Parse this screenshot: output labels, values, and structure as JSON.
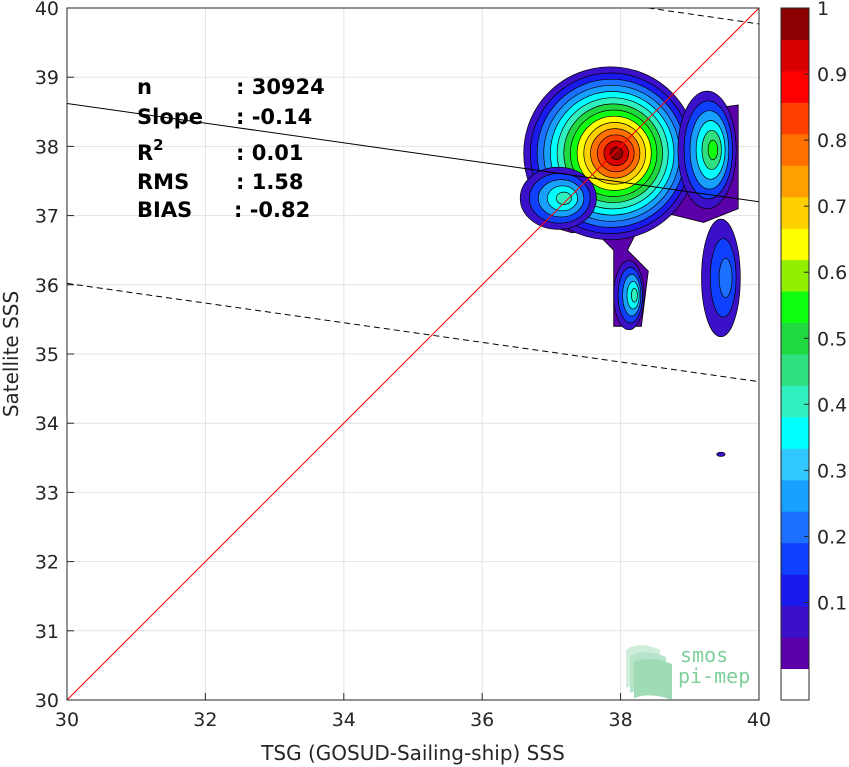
{
  "chart_data": {
    "type": "heatmap",
    "subtype": "contour density with regression lines",
    "xlabel": "TSG (GOSUD-Sailing-ship) SSS",
    "ylabel": "Satellite SSS",
    "xlim": [
      30,
      40
    ],
    "ylim": [
      30,
      40
    ],
    "x_ticks": [
      "30",
      "32",
      "34",
      "36",
      "38",
      "40"
    ],
    "y_ticks": [
      "30",
      "31",
      "32",
      "33",
      "34",
      "35",
      "36",
      "37",
      "38",
      "39",
      "40"
    ],
    "grid": true,
    "stats": [
      {
        "label": "n",
        "value": ": 30924"
      },
      {
        "label": "Slope",
        "value": ": -0.14"
      },
      {
        "label": "R",
        "sup": "2",
        "value": ": 0.01"
      },
      {
        "label": "RMS",
        "value": ": 1.58"
      },
      {
        "label": "BIAS",
        "value": ": -0.82"
      }
    ],
    "one_to_one_line": {
      "color": "#ff0000",
      "points": [
        [
          30,
          30
        ],
        [
          40,
          40
        ]
      ]
    },
    "regression_line": {
      "color": "#000000",
      "points": [
        [
          30,
          38.62
        ],
        [
          40,
          37.2
        ]
      ]
    },
    "upper_bound_line": {
      "color": "#000000",
      "style": "dashed",
      "points": [
        [
          38.4,
          40
        ],
        [
          40,
          39.77
        ]
      ]
    },
    "lower_bound_line": {
      "color": "#000000",
      "style": "dashed",
      "points": [
        [
          30,
          36.02
        ],
        [
          40,
          34.6
        ]
      ]
    },
    "density_peaks": [
      {
        "x": 37.97,
        "y": 37.9,
        "value": 1.0
      },
      {
        "x": 39.25,
        "y": 37.95,
        "value": 0.55
      },
      {
        "x": 37.1,
        "y": 37.28,
        "value": 0.45
      },
      {
        "x": 38.12,
        "y": 35.85,
        "value": 0.45
      },
      {
        "x": 39.45,
        "y": 36.05,
        "value": 0.25
      },
      {
        "x": 39.45,
        "y": 33.55,
        "value": 0.1
      }
    ],
    "colorbar": {
      "range": [
        0,
        1
      ],
      "ticks": [
        "0.1",
        "0.2",
        "0.3",
        "0.4",
        "0.5",
        "0.6",
        "0.7",
        "0.8",
        "0.9",
        "1"
      ],
      "colors": [
        "#ffffff",
        "#5b00a8",
        "#3a10c8",
        "#1a1aee",
        "#1040ff",
        "#1c70ff",
        "#18a0ff",
        "#30c8ff",
        "#00ffff",
        "#30f0c0",
        "#30e080",
        "#20d840",
        "#10ff10",
        "#90f000",
        "#ffff00",
        "#ffd000",
        "#ffa000",
        "#ff7000",
        "#ff4000",
        "#ff0000",
        "#d80000",
        "#8b0000"
      ]
    }
  },
  "logo": {
    "line1": "smos",
    "line2": "pi-mep"
  }
}
